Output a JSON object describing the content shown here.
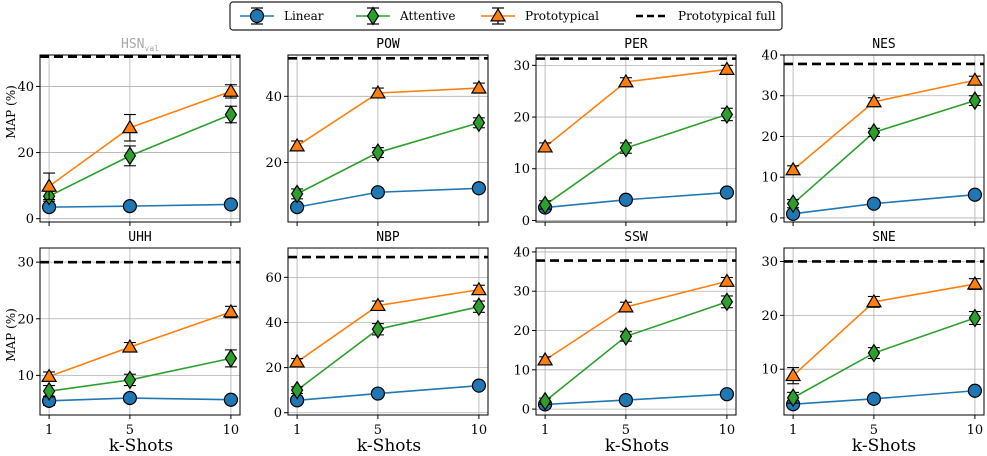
{
  "figure": {
    "x_axis_label": "k-Shots",
    "y_axis_label": "MAP (%)"
  },
  "legend": {
    "placement": "top-center",
    "entries": [
      {
        "name": "Linear",
        "color": "#1f77b4",
        "marker": "circle"
      },
      {
        "name": "Attentive",
        "color": "#2ca02c",
        "marker": "diamond"
      },
      {
        "name": "Prototypical",
        "color": "#ff7f0e",
        "marker": "triangle"
      },
      {
        "name": "Prototypical full",
        "color": "#000000",
        "marker": "dashed-line"
      }
    ]
  },
  "chart_data": [
    {
      "type": "line",
      "title": "HSN",
      "title_sub": "val",
      "title_color": "#a8a8a8",
      "x": [
        1,
        5,
        10
      ],
      "xticks": [
        1,
        5,
        10
      ],
      "ylim": [
        -1,
        49.5
      ],
      "yticks": [
        0,
        20,
        40
      ],
      "grid": true,
      "series": [
        {
          "name": "Linear",
          "values": [
            3.5,
            3.8,
            4.3
          ],
          "errors": [
            0.5,
            0.5,
            0.5
          ]
        },
        {
          "name": "Attentive",
          "values": [
            6.8,
            19,
            31.5
          ],
          "errors": [
            1.5,
            3,
            2.5
          ]
        },
        {
          "name": "Prototypical",
          "values": [
            9.8,
            27.5,
            38.5
          ],
          "errors": [
            4,
            4,
            2
          ]
        },
        {
          "name": "Prototypical full",
          "values": [
            49,
            49,
            49
          ]
        }
      ]
    },
    {
      "type": "line",
      "title": "POW",
      "title_sub": "",
      "title_color": "#000000",
      "x": [
        1,
        5,
        10
      ],
      "xticks": [
        1,
        5,
        10
      ],
      "ylim": [
        2,
        52.5
      ],
      "yticks": [
        20,
        40
      ],
      "grid": true,
      "series": [
        {
          "name": "Linear",
          "values": [
            6.5,
            11,
            12.2
          ],
          "errors": [
            0.5,
            0.5,
            0.5
          ]
        },
        {
          "name": "Attentive",
          "values": [
            10.5,
            23,
            32
          ],
          "errors": [
            1.5,
            1.5,
            1.5
          ]
        },
        {
          "name": "Prototypical",
          "values": [
            25,
            41,
            42.5
          ],
          "errors": [
            1.5,
            1.5,
            1.5
          ]
        },
        {
          "name": "Prototypical full",
          "values": [
            51.5,
            51.5,
            51.5
          ]
        }
      ]
    },
    {
      "type": "line",
      "title": "PER",
      "title_sub": "",
      "title_color": "#000000",
      "x": [
        1,
        5,
        10
      ],
      "xticks": [
        1,
        5,
        10
      ],
      "ylim": [
        -0.3,
        32
      ],
      "yticks": [
        0,
        10,
        20,
        30
      ],
      "grid": true,
      "series": [
        {
          "name": "Linear",
          "values": [
            2.5,
            4,
            5.4
          ],
          "errors": [
            0.3,
            0.3,
            0.3
          ]
        },
        {
          "name": "Attentive",
          "values": [
            3,
            14,
            20.5
          ],
          "errors": [
            0.8,
            1,
            1.2
          ]
        },
        {
          "name": "Prototypical",
          "values": [
            14.2,
            26.8,
            29.2
          ],
          "errors": [
            0.8,
            0.8,
            0.8
          ]
        },
        {
          "name": "Prototypical full",
          "values": [
            31.3,
            31.3,
            31.3
          ]
        }
      ]
    },
    {
      "type": "line",
      "title": "NES",
      "title_sub": "",
      "title_color": "#000000",
      "x": [
        1,
        5,
        10
      ],
      "xticks": [
        1,
        5,
        10
      ],
      "ylim": [
        -1,
        40
      ],
      "yticks": [
        0,
        10,
        20,
        30,
        40
      ],
      "grid": true,
      "series": [
        {
          "name": "Linear",
          "values": [
            1,
            3.5,
            5.7
          ],
          "errors": [
            0.3,
            0.3,
            0.3
          ]
        },
        {
          "name": "Attentive",
          "values": [
            3.5,
            21,
            28.8
          ],
          "errors": [
            1,
            1,
            1.2
          ]
        },
        {
          "name": "Prototypical",
          "values": [
            11.8,
            28.5,
            33.8
          ],
          "errors": [
            1,
            1,
            1
          ]
        },
        {
          "name": "Prototypical full",
          "values": [
            37.8,
            37.8,
            37.8
          ]
        }
      ]
    },
    {
      "type": "line",
      "title": "UHH",
      "title_sub": "",
      "title_color": "#000000",
      "x": [
        1,
        5,
        10
      ],
      "xticks": [
        1,
        5,
        10
      ],
      "ylim": [
        3,
        32.5
      ],
      "yticks": [
        10,
        20,
        30
      ],
      "grid": true,
      "series": [
        {
          "name": "Linear",
          "values": [
            5.5,
            6,
            5.7
          ],
          "errors": [
            0.8,
            0.6,
            0.6
          ]
        },
        {
          "name": "Attentive",
          "values": [
            7.2,
            9.2,
            13
          ],
          "errors": [
            1,
            1,
            1.5
          ]
        },
        {
          "name": "Prototypical",
          "values": [
            9.8,
            15,
            21.2
          ],
          "errors": [
            0.8,
            0.8,
            1
          ]
        },
        {
          "name": "Prototypical full",
          "values": [
            30,
            30,
            30
          ]
        }
      ]
    },
    {
      "type": "line",
      "title": "NBP",
      "title_sub": "",
      "title_color": "#000000",
      "x": [
        1,
        5,
        10
      ],
      "xticks": [
        1,
        5,
        10
      ],
      "ylim": [
        -1,
        73
      ],
      "yticks": [
        0,
        20,
        40,
        60
      ],
      "grid": true,
      "series": [
        {
          "name": "Linear",
          "values": [
            5.5,
            8.5,
            12
          ],
          "errors": [
            0.5,
            0.5,
            0.5
          ]
        },
        {
          "name": "Attentive",
          "values": [
            10,
            37,
            47
          ],
          "errors": [
            1.5,
            2.5,
            2.5
          ]
        },
        {
          "name": "Prototypical",
          "values": [
            22.5,
            47.5,
            54.5
          ],
          "errors": [
            1.5,
            2,
            2
          ]
        },
        {
          "name": "Prototypical full",
          "values": [
            69,
            69,
            69
          ]
        }
      ]
    },
    {
      "type": "line",
      "title": "SSW",
      "title_sub": "",
      "title_color": "#000000",
      "x": [
        1,
        5,
        10
      ],
      "xticks": [
        1,
        5,
        10
      ],
      "ylim": [
        -1.5,
        41
      ],
      "yticks": [
        0,
        10,
        20,
        30,
        40
      ],
      "grid": true,
      "series": [
        {
          "name": "Linear",
          "values": [
            1.2,
            2.3,
            3.8
          ],
          "errors": [
            0.3,
            0.3,
            0.3
          ]
        },
        {
          "name": "Attentive",
          "values": [
            2,
            18.5,
            27.3
          ],
          "errors": [
            0.8,
            1.2,
            1.5
          ]
        },
        {
          "name": "Prototypical",
          "values": [
            12.5,
            26,
            32.5
          ],
          "errors": [
            0.8,
            1.2,
            1
          ]
        },
        {
          "name": "Prototypical full",
          "values": [
            37.8,
            37.8,
            37.8
          ]
        }
      ]
    },
    {
      "type": "line",
      "title": "SNE",
      "title_sub": "",
      "title_color": "#000000",
      "x": [
        1,
        5,
        10
      ],
      "xticks": [
        1,
        5,
        10
      ],
      "ylim": [
        1.5,
        32.5
      ],
      "yticks": [
        10,
        20,
        30
      ],
      "grid": true,
      "series": [
        {
          "name": "Linear",
          "values": [
            3.5,
            4.5,
            6
          ],
          "errors": [
            0.4,
            0.4,
            0.4
          ]
        },
        {
          "name": "Attentive",
          "values": [
            4.7,
            13,
            19.5
          ],
          "errors": [
            1,
            1,
            1.2
          ]
        },
        {
          "name": "Prototypical",
          "values": [
            8.8,
            22.5,
            25.8
          ],
          "errors": [
            1.5,
            1,
            1
          ]
        },
        {
          "name": "Prototypical full",
          "values": [
            30,
            30,
            30
          ]
        }
      ]
    }
  ]
}
